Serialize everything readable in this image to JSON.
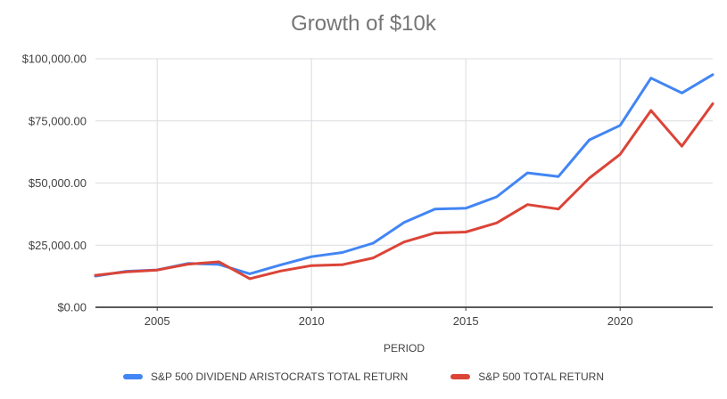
{
  "chart_data": {
    "type": "line",
    "title": "Growth of $10k",
    "xlabel": "PERIOD",
    "ylabel": "",
    "x": [
      2003,
      2004,
      2005,
      2006,
      2007,
      2008,
      2009,
      2010,
      2011,
      2012,
      2013,
      2014,
      2015,
      2016,
      2017,
      2018,
      2019,
      2020,
      2021,
      2022,
      2023
    ],
    "x_ticks": [
      2005,
      2010,
      2015,
      2020
    ],
    "y_ticks": [
      {
        "v": 0,
        "label": "$0.00"
      },
      {
        "v": 25000,
        "label": "$25,000.00"
      },
      {
        "v": 50000,
        "label": "$50,000.00"
      },
      {
        "v": 75000,
        "label": "$75,000.00"
      },
      {
        "v": 100000,
        "label": "$100,000.00"
      }
    ],
    "ylim": [
      0,
      100000
    ],
    "grid": true,
    "legend_position": "bottom",
    "series": [
      {
        "name": "S&P 500 DIVIDEND ARISTOCRATS TOTAL RETURN",
        "color": "#4285F4",
        "values": [
          12540,
          14480,
          15020,
          17620,
          17250,
          13480,
          17060,
          20370,
          22060,
          25790,
          34120,
          39510,
          39860,
          44440,
          54080,
          52620,
          67340,
          73190,
          92210,
          86220,
          93620
        ]
      },
      {
        "name": "S&P 500 TOTAL RETURN",
        "color": "#DB4437",
        "values": [
          12870,
          14270,
          14970,
          17340,
          18290,
          11520,
          14570,
          16760,
          17120,
          19860,
          26290,
          29890,
          30300,
          33930,
          41340,
          39530,
          51970,
          61540,
          79180,
          64840,
          81890
        ]
      }
    ],
    "colors": {
      "title": "#757575",
      "tick_text": "#424242",
      "axis": "#424242",
      "grid": "#DADCE0"
    }
  }
}
